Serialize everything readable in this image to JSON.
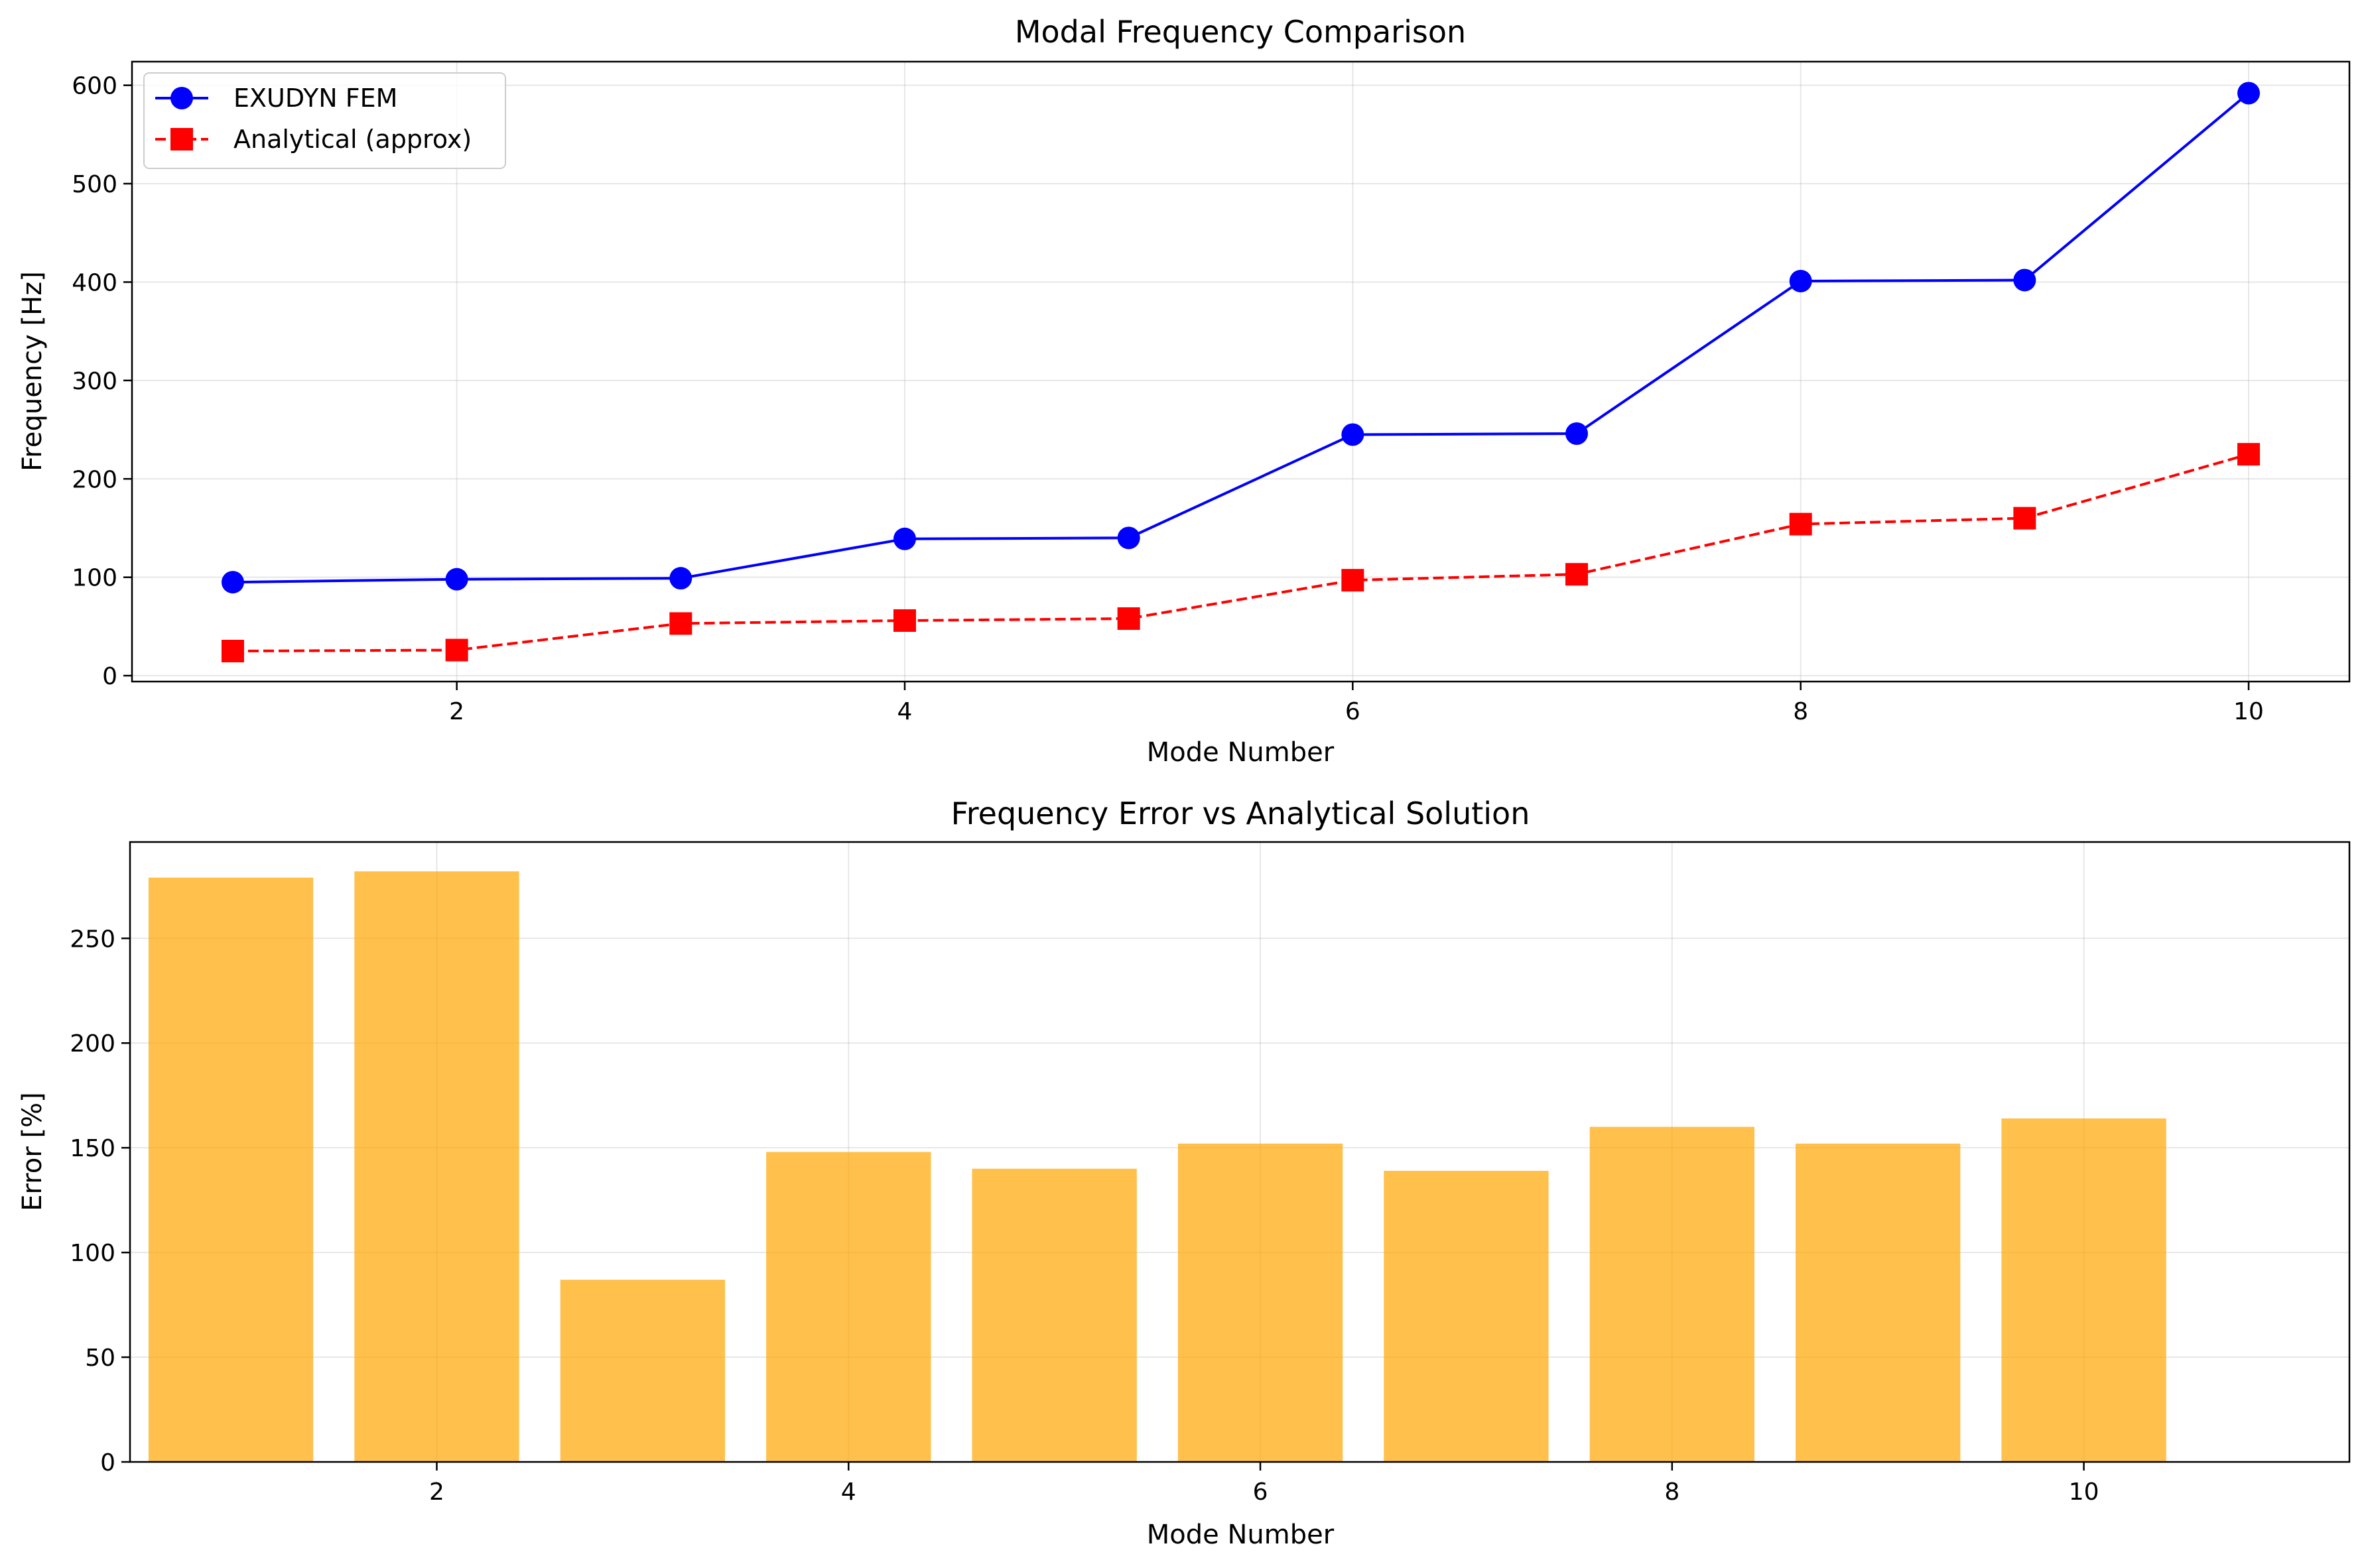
{
  "colors": {
    "fem": "#0000ff",
    "analytical": "#ff0000",
    "bars": "#ffa500",
    "bar_alpha": 0.7,
    "grid": "#b0b0b0"
  },
  "chart_data": [
    {
      "type": "line",
      "title": "Modal Frequency Comparison",
      "xlabel": "Mode Number",
      "ylabel": "Frequency [Hz]",
      "x": [
        1,
        2,
        3,
        4,
        5,
        6,
        7,
        8,
        9,
        10
      ],
      "xlim": [
        0.55,
        10.45
      ],
      "ylim": [
        -6,
        624
      ],
      "xticks": [
        2,
        4,
        6,
        8,
        10
      ],
      "yticks": [
        0,
        100,
        200,
        300,
        400,
        500,
        600
      ],
      "grid": true,
      "legend": "top-left",
      "series": [
        {
          "name": "EXUDYN FEM",
          "marker": "circle",
          "style": "solid",
          "values": [
            95,
            98,
            99,
            139,
            140,
            245,
            246,
            401,
            402,
            592
          ]
        },
        {
          "name": "Analytical (approx)",
          "marker": "square",
          "style": "dashed",
          "values": [
            25,
            26,
            53,
            56,
            58,
            97,
            103,
            154,
            160,
            225
          ]
        }
      ]
    },
    {
      "type": "bar",
      "title": "Frequency Error vs Analytical Solution",
      "xlabel": "Mode Number",
      "ylabel": "Error [%]",
      "x": [
        1,
        2,
        3,
        4,
        5,
        6,
        7,
        8,
        9,
        10
      ],
      "values": [
        279,
        282,
        87,
        148,
        140,
        152,
        139,
        160,
        152,
        164
      ],
      "xlim": [
        0.51,
        11.29
      ],
      "ylim": [
        0,
        296
      ],
      "xticks": [
        2,
        4,
        6,
        8,
        10
      ],
      "yticks": [
        0,
        50,
        100,
        150,
        200,
        250
      ],
      "grid": true
    }
  ]
}
